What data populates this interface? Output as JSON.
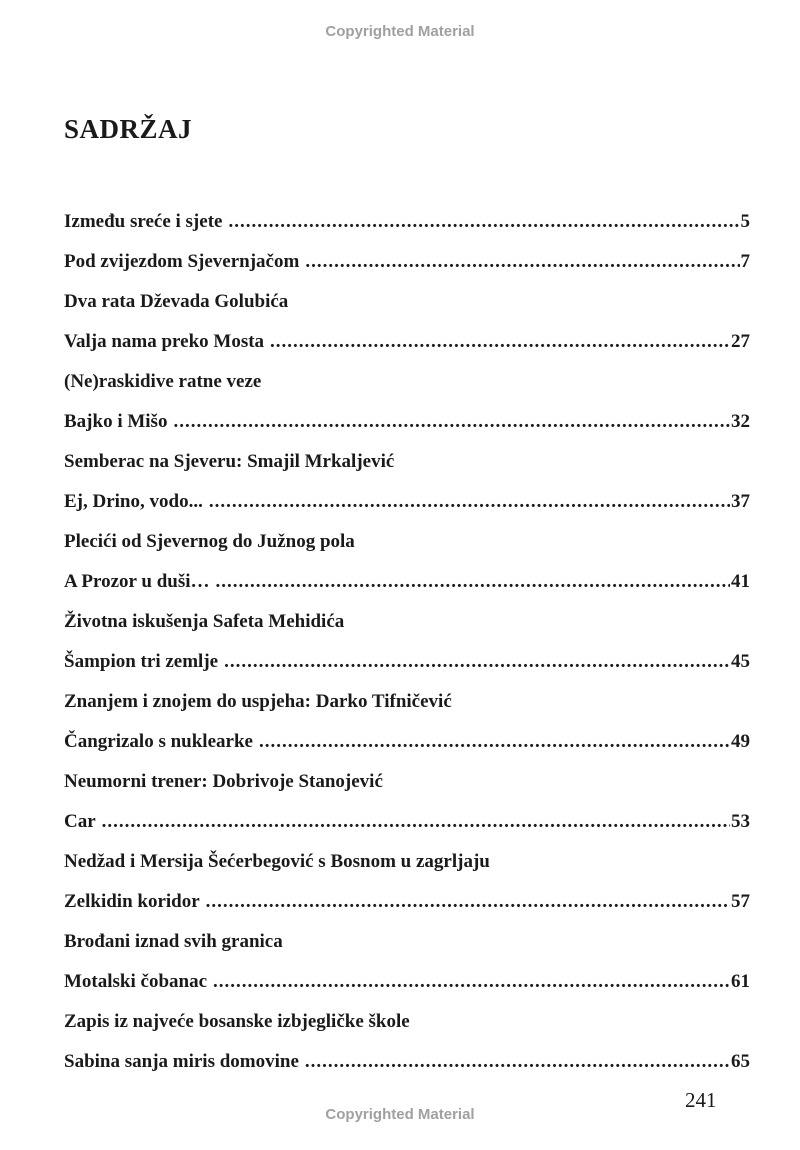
{
  "watermark": "Copyrighted Material",
  "title": "SADRŽAJ",
  "entries": [
    {
      "text": "Između sreće i sjete",
      "page": "5"
    },
    {
      "text": "Pod zvijezdom Sjevernjačom",
      "page": "7"
    },
    {
      "text": "Dva rata Dževada Golubića",
      "page": null
    },
    {
      "text": "Valja nama preko Mosta",
      "page": "27"
    },
    {
      "text": "(Ne)raskidive ratne veze",
      "page": null
    },
    {
      "text": "Bajko i Mišo",
      "page": "32"
    },
    {
      "text": "Semberac na Sjeveru: Smajil Mrkaljević",
      "page": null
    },
    {
      "text": "Ej, Drino, vodo...",
      "page": "37"
    },
    {
      "text": "Plecići od Sjevernog do Južnog pola",
      "page": null
    },
    {
      "text": "A Prozor u duši…",
      "page": "41"
    },
    {
      "text": "Životna iskušenja Safeta Mehidića",
      "page": null
    },
    {
      "text": "Šampion tri zemlje",
      "page": "45"
    },
    {
      "text": "Znanjem i znojem do uspjeha: Darko Tifničević",
      "page": null
    },
    {
      "text": "Čangrizalo s nuklearke",
      "page": "49"
    },
    {
      "text": "Neumorni trener: Dobrivoje Stanojević",
      "page": null
    },
    {
      "text": "Car",
      "page": "53"
    },
    {
      "text": "Nedžad i Mersija Šećerbegović s Bosnom u zagrljaju",
      "page": null
    },
    {
      "text": "Zelkidin koridor",
      "page": "57"
    },
    {
      "text": "Brođani iznad svih granica",
      "page": null
    },
    {
      "text": "Motalski  čobanac",
      "page": "61"
    },
    {
      "text": "Zapis iz najveće bosanske izbjegličke škole",
      "page": null
    },
    {
      "text": "Sabina sanja miris domovine",
      "page": "65"
    }
  ],
  "page_number": "241"
}
